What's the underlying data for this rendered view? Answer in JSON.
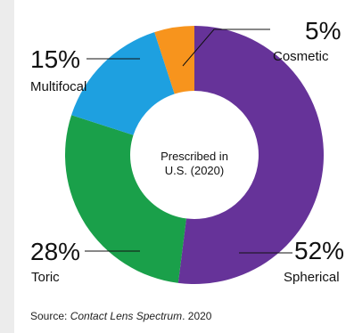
{
  "chart_data": {
    "type": "pie",
    "variant": "donut",
    "center_text": [
      "Prescribed in",
      "U.S. (2020)"
    ],
    "slices": [
      {
        "label": "Spherical",
        "value_label": "52%",
        "value": 52,
        "color": "#663399"
      },
      {
        "label": "Toric",
        "value_label": "28%",
        "value": 28,
        "color": "#1aa04a"
      },
      {
        "label": "Multifocal",
        "value_label": "15%",
        "value": 15,
        "color": "#1ea0e0"
      },
      {
        "label": "Cosmetic",
        "value_label": "5%",
        "value": 5,
        "color": "#f7941d"
      }
    ],
    "legend": "none"
  },
  "source": {
    "prefix": "Source: ",
    "publication": "Contact Lens Spectrum",
    "suffix": ". 2020"
  },
  "colors": {
    "background": "#ffffff",
    "page": "#ececec",
    "text": "#111111",
    "leader": "#111111"
  }
}
